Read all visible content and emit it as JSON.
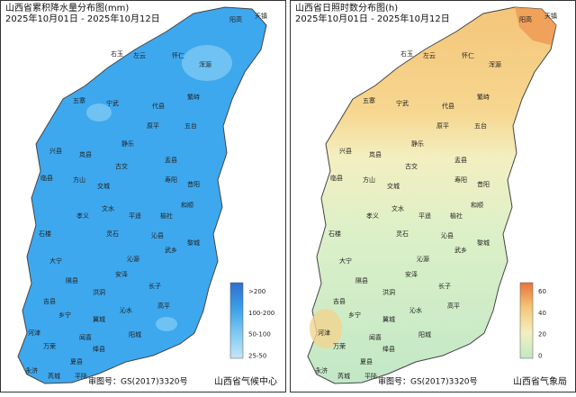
{
  "panels": [
    {
      "title": "山西省累积降水量分布图(mm)",
      "date_range": "2025年10月01日 - 2025年10月12日",
      "legend": [
        ">200",
        "100-200",
        "50-100",
        "25-50"
      ],
      "review_no": "审图号：GS(2017)3320号",
      "source": "山西省气候中心"
    },
    {
      "title": "山西省日照时数分布图(h)",
      "date_range": "2025年10月01日 - 2025年10月12日",
      "legend": [
        "60",
        "40",
        "20",
        "0"
      ],
      "review_no": "审图号：GS(2017)3320号",
      "source": "山西省气象局"
    }
  ],
  "counties": [
    "天镇",
    "阳高",
    "右玉",
    "左云",
    "怀仁",
    "浑源",
    "五寨",
    "宁武",
    "代县",
    "繁峙",
    "静乐",
    "兴县",
    "原平",
    "五台",
    "岚县",
    "临县",
    "方山",
    "古交",
    "交城",
    "盂县",
    "文水",
    "寿阳",
    "昔阳",
    "和顺",
    "孝义",
    "平遥",
    "榆社",
    "石楼",
    "灵石",
    "沁县",
    "武乡",
    "黎城",
    "大宁",
    "沁源",
    "长子",
    "隰县",
    "安泽",
    "高平",
    "吉县",
    "乡宁",
    "洪洞",
    "沁水",
    "阳城",
    "河津",
    "翼城",
    "万荣",
    "闻喜",
    "绛县",
    "永济",
    "夏县",
    "芮城",
    "平陆"
  ]
}
